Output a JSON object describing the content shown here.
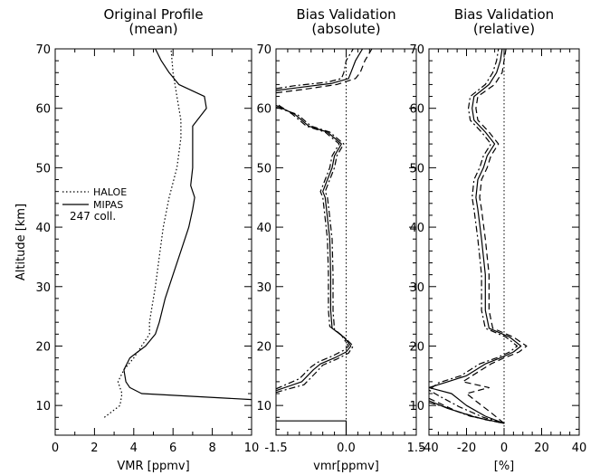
{
  "chart_data": [
    {
      "type": "line",
      "title": [
        "Original Profile",
        "(mean)"
      ],
      "xlabel": "VMR [ppmv]",
      "ylabel": "Altitude [km]",
      "xlim": [
        0,
        10
      ],
      "ylim": [
        5,
        70
      ],
      "xticks": [
        0,
        2,
        4,
        6,
        8,
        10
      ],
      "yticks": [
        10,
        20,
        30,
        40,
        50,
        60,
        70
      ],
      "legend": {
        "placement": "middle-left",
        "note": "247 coll."
      },
      "series": [
        {
          "name": "HALOE",
          "style": "dotted",
          "points": [
            [
              2.5,
              8
            ],
            [
              3.3,
              10
            ],
            [
              3.4,
              12
            ],
            [
              3.2,
              14
            ],
            [
              3.5,
              16
            ],
            [
              4.0,
              18
            ],
            [
              4.4,
              20
            ],
            [
              4.8,
              22
            ],
            [
              4.8,
              24
            ],
            [
              4.9,
              26
            ],
            [
              5.1,
              30
            ],
            [
              5.3,
              35
            ],
            [
              5.5,
              40
            ],
            [
              5.8,
              45
            ],
            [
              6.2,
              50
            ],
            [
              6.4,
              55
            ],
            [
              6.4,
              58
            ],
            [
              6.2,
              62
            ],
            [
              6.0,
              66
            ],
            [
              5.9,
              70
            ]
          ]
        },
        {
          "name": "MIPAS",
          "style": "solid",
          "points": [
            [
              10,
              11
            ],
            [
              4.4,
              12
            ],
            [
              3.8,
              13
            ],
            [
              3.6,
              14
            ],
            [
              3.5,
              16
            ],
            [
              3.8,
              18
            ],
            [
              4.2,
              19
            ],
            [
              4.6,
              20
            ],
            [
              5.1,
              22
            ],
            [
              5.3,
              24
            ],
            [
              5.6,
              28
            ],
            [
              6.0,
              32
            ],
            [
              6.4,
              36
            ],
            [
              6.8,
              40
            ],
            [
              7.0,
              43
            ],
            [
              7.1,
              45
            ],
            [
              6.9,
              47
            ],
            [
              7.0,
              50
            ],
            [
              7.0,
              54
            ],
            [
              7.0,
              57
            ],
            [
              7.7,
              60
            ],
            [
              7.6,
              62
            ],
            [
              6.3,
              64
            ],
            [
              5.8,
              66
            ],
            [
              5.4,
              68
            ],
            [
              5.1,
              70
            ]
          ]
        }
      ]
    },
    {
      "type": "line",
      "title": [
        "Bias Validation",
        "(absolute)"
      ],
      "xlabel": "vmr[ppmv]",
      "ylabel": "",
      "xlim": [
        -1.5,
        1.5
      ],
      "ylim": [
        5,
        70
      ],
      "xticks": [
        -1.5,
        0.0,
        1.5
      ],
      "yticks": [
        10,
        20,
        30,
        40,
        50,
        60,
        70
      ],
      "reference_line": {
        "x": 0,
        "style": "dotted"
      },
      "series": [
        {
          "name": "",
          "style": "solid",
          "points": [
            [
              -1.5,
              7.4
            ],
            [
              0.0,
              7.4
            ],
            [
              0.0,
              5.0
            ]
          ]
        },
        {
          "name": "",
          "style": "solid",
          "points": [
            [
              -1.5,
              12.5
            ],
            [
              -0.95,
              14
            ],
            [
              -0.7,
              16
            ],
            [
              -0.55,
              17
            ],
            [
              -0.25,
              18
            ],
            [
              0.0,
              19
            ],
            [
              0.1,
              20
            ],
            [
              -0.05,
              21.5
            ],
            [
              -0.3,
              23
            ],
            [
              -0.33,
              26
            ],
            [
              -0.33,
              32
            ],
            [
              -0.35,
              38
            ],
            [
              -0.42,
              43
            ],
            [
              -0.45,
              45
            ],
            [
              -0.5,
              46
            ],
            [
              -0.4,
              48
            ],
            [
              -0.3,
              50
            ],
            [
              -0.25,
              52
            ],
            [
              -0.1,
              54
            ],
            [
              -0.4,
              56
            ],
            [
              -0.8,
              57
            ],
            [
              -1.1,
              59
            ],
            [
              -1.5,
              60.5
            ]
          ]
        },
        {
          "name": "",
          "style": "dashdot",
          "points": [
            [
              -1.5,
              12.2
            ],
            [
              -0.9,
              13.5
            ],
            [
              -0.65,
              15.5
            ],
            [
              -0.5,
              16.8
            ],
            [
              -0.2,
              17.8
            ],
            [
              0.05,
              18.8
            ],
            [
              0.15,
              20
            ],
            [
              0.0,
              21.2
            ],
            [
              -0.25,
              22.8
            ],
            [
              -0.28,
              26
            ],
            [
              -0.28,
              32
            ],
            [
              -0.3,
              38
            ],
            [
              -0.37,
              43
            ],
            [
              -0.4,
              45
            ],
            [
              -0.45,
              46
            ],
            [
              -0.35,
              48
            ],
            [
              -0.25,
              50
            ],
            [
              -0.2,
              52
            ],
            [
              -0.05,
              54
            ],
            [
              -0.35,
              56
            ],
            [
              -0.75,
              57
            ],
            [
              -1.05,
              59
            ],
            [
              -1.5,
              60.2
            ]
          ]
        },
        {
          "name": "",
          "style": "dashdot",
          "points": [
            [
              -1.5,
              12.8
            ],
            [
              -1.0,
              14.5
            ],
            [
              -0.75,
              16.5
            ],
            [
              -0.6,
              17.3
            ],
            [
              -0.3,
              18.3
            ],
            [
              -0.05,
              19.3
            ],
            [
              0.05,
              20
            ],
            [
              -0.1,
              21.8
            ],
            [
              -0.35,
              23.3
            ],
            [
              -0.38,
              26
            ],
            [
              -0.38,
              32
            ],
            [
              -0.4,
              38
            ],
            [
              -0.47,
              43
            ],
            [
              -0.5,
              45
            ],
            [
              -0.55,
              46
            ],
            [
              -0.45,
              48
            ],
            [
              -0.35,
              50
            ],
            [
              -0.3,
              52
            ],
            [
              -0.15,
              54
            ],
            [
              -0.45,
              56
            ],
            [
              -0.85,
              57
            ],
            [
              -1.15,
              59
            ],
            [
              -1.5,
              60.8
            ]
          ]
        },
        {
          "name": "",
          "style": "solid",
          "points": [
            [
              -1.5,
              63.0
            ],
            [
              -1.0,
              63.5
            ],
            [
              -0.3,
              64.2
            ],
            [
              0.05,
              65
            ],
            [
              0.1,
              66
            ],
            [
              0.2,
              68
            ],
            [
              0.35,
              70
            ]
          ]
        },
        {
          "name": "",
          "style": "dashed",
          "points": [
            [
              -1.5,
              62.6
            ],
            [
              -0.9,
              63.2
            ],
            [
              -0.2,
              64.0
            ],
            [
              0.2,
              65
            ],
            [
              0.3,
              66
            ],
            [
              0.4,
              68
            ],
            [
              0.55,
              70
            ]
          ]
        },
        {
          "name": "",
          "style": "dashdot",
          "points": [
            [
              -1.5,
              63.3
            ],
            [
              -1.1,
              63.8
            ],
            [
              -0.4,
              64.4
            ],
            [
              -0.1,
              65
            ],
            [
              -0.05,
              66
            ],
            [
              0.0,
              68
            ],
            [
              0.15,
              70
            ]
          ]
        }
      ]
    },
    {
      "type": "line",
      "title": [
        "Bias Validation",
        "(relative)"
      ],
      "xlabel": "[%]",
      "ylabel": "",
      "xlim": [
        -40,
        40
      ],
      "ylim": [
        5,
        70
      ],
      "xticks": [
        -40,
        -20,
        0,
        20,
        40
      ],
      "yticks": [
        10,
        20,
        30,
        40,
        50,
        60,
        70
      ],
      "reference_line": {
        "x": 0,
        "style": "dotted"
      },
      "series": [
        {
          "name": "",
          "style": "solid",
          "points": [
            [
              -40,
              10.8
            ],
            [
              -30,
              9.5
            ],
            [
              -15,
              8
            ],
            [
              0,
              7
            ],
            [
              -10,
              8.2
            ],
            [
              -20,
              10
            ],
            [
              -28,
              12
            ],
            [
              -40,
              13
            ],
            [
              -30,
              14
            ],
            [
              -20,
              15
            ],
            [
              -15,
              16
            ],
            [
              -10,
              17
            ],
            [
              -2,
              18
            ],
            [
              5,
              19
            ],
            [
              9,
              20
            ],
            [
              3,
              21.5
            ],
            [
              -8,
              23
            ],
            [
              -10,
              26
            ],
            [
              -10,
              32
            ],
            [
              -12,
              38
            ],
            [
              -14,
              43
            ],
            [
              -15,
              45
            ],
            [
              -14,
              48
            ],
            [
              -11,
              50
            ],
            [
              -9,
              52
            ],
            [
              -5,
              54
            ],
            [
              -10,
              56
            ],
            [
              -16,
              58
            ],
            [
              -17,
              60
            ],
            [
              -16,
              62
            ],
            [
              -8,
              64
            ],
            [
              -4,
              66
            ],
            [
              -2,
              68
            ],
            [
              -1,
              70
            ]
          ]
        },
        {
          "name": "",
          "style": "dashed",
          "points": [
            [
              -40,
              11.2
            ],
            [
              -25,
              9
            ],
            [
              -10,
              7.6
            ],
            [
              0,
              7
            ],
            [
              -7,
              8.8
            ],
            [
              -14,
              10.5
            ],
            [
              -20,
              12
            ],
            [
              -8,
              13
            ],
            [
              -22,
              14
            ],
            [
              -17,
              15
            ],
            [
              -12,
              16
            ],
            [
              -7,
              17
            ],
            [
              0,
              18
            ],
            [
              8,
              19
            ],
            [
              12,
              20
            ],
            [
              5,
              21.5
            ],
            [
              -6,
              23
            ],
            [
              -8,
              26
            ],
            [
              -8,
              32
            ],
            [
              -10,
              38
            ],
            [
              -12,
              43
            ],
            [
              -13,
              45
            ],
            [
              -12,
              48
            ],
            [
              -9,
              50
            ],
            [
              -7,
              52
            ],
            [
              -3,
              54
            ],
            [
              -8,
              56
            ],
            [
              -14,
              58
            ],
            [
              -15,
              60
            ],
            [
              -14,
              62
            ],
            [
              -5,
              64
            ],
            [
              -1,
              66
            ],
            [
              0,
              68
            ],
            [
              1,
              70
            ]
          ]
        },
        {
          "name": "",
          "style": "dashdot",
          "points": [
            [
              -40,
              10.5
            ],
            [
              -32,
              9.8
            ],
            [
              -18,
              8.2
            ],
            [
              0,
              7
            ],
            [
              -11,
              8.0
            ],
            [
              -24,
              9.8
            ],
            [
              -34,
              11.5
            ],
            [
              -40,
              12.6
            ],
            [
              -35,
              13.8
            ],
            [
              -23,
              15
            ],
            [
              -18,
              16
            ],
            [
              -13,
              17
            ],
            [
              -4,
              18
            ],
            [
              3,
              19
            ],
            [
              7,
              20
            ],
            [
              1,
              21.5
            ],
            [
              -10,
              23
            ],
            [
              -12,
              26
            ],
            [
              -12,
              32
            ],
            [
              -14,
              38
            ],
            [
              -16,
              43
            ],
            [
              -17,
              45
            ],
            [
              -16,
              48
            ],
            [
              -13,
              50
            ],
            [
              -11,
              52
            ],
            [
              -7,
              54
            ],
            [
              -12,
              56
            ],
            [
              -18,
              58
            ],
            [
              -19,
              60
            ],
            [
              -18,
              62
            ],
            [
              -10,
              64
            ],
            [
              -6,
              66
            ],
            [
              -4,
              68
            ],
            [
              -3,
              70
            ]
          ]
        }
      ]
    }
  ]
}
